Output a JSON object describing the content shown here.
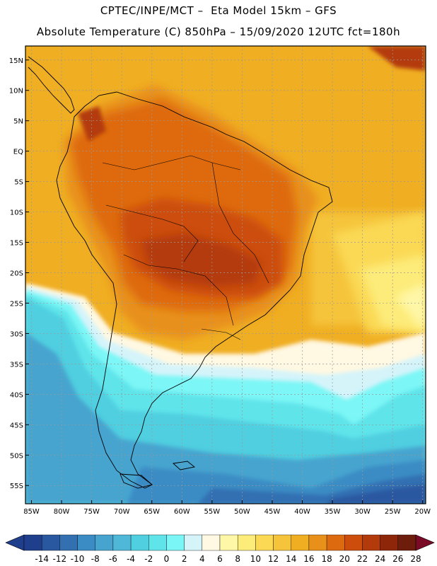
{
  "header": {
    "line1": "CPTEC/INPE/MCT –  Eta Model 15km – GFS",
    "line2": "Absolute Temperature (C) 850hPa – 15/09/2020 12UTC fct=180h"
  },
  "map": {
    "lat_labels": [
      "15N",
      "10N",
      "5N",
      "EQ",
      "5S",
      "10S",
      "15S",
      "20S",
      "25S",
      "30S",
      "35S",
      "40S",
      "45S",
      "50S",
      "55S"
    ],
    "lon_labels": [
      "85W",
      "80W",
      "75W",
      "70W",
      "65W",
      "60W",
      "55W",
      "50W",
      "45W",
      "40W",
      "35W",
      "30W",
      "25W",
      "20W"
    ]
  },
  "colorbar": {
    "labels": [
      "-14",
      "-12",
      "-10",
      "-8",
      "-6",
      "-4",
      "-2",
      "0",
      "2",
      "4",
      "6",
      "8",
      "10",
      "12",
      "14",
      "16",
      "18",
      "20",
      "22",
      "24",
      "26",
      "28"
    ],
    "colors": [
      "#1f3e8c",
      "#2a58a0",
      "#3270b2",
      "#3b8cc4",
      "#46a4cf",
      "#4fb8d8",
      "#4fcfe0",
      "#5fe4ea",
      "#7bf6f6",
      "#d4f4fa",
      "#fff8e2",
      "#fff7a8",
      "#fdec7a",
      "#fbd955",
      "#f5c43a",
      "#f0ae22",
      "#e8901a",
      "#de6a10",
      "#cc4d0c",
      "#b33a0a",
      "#8e260a",
      "#6e1c0c",
      "#7a0b26"
    ]
  }
}
